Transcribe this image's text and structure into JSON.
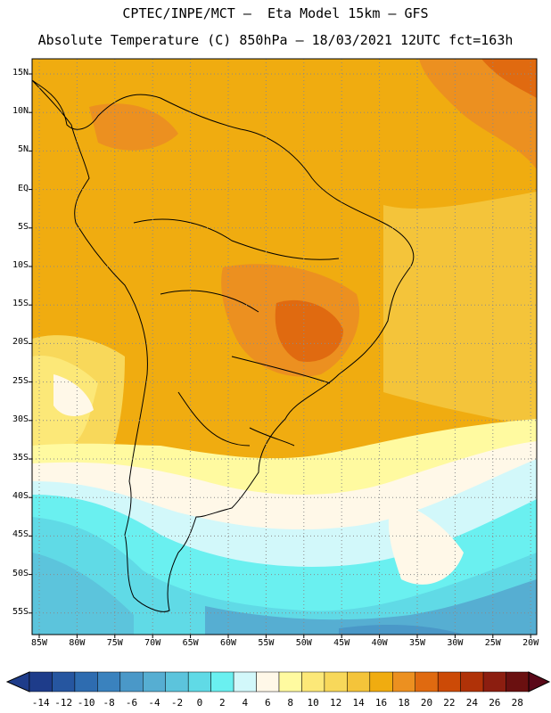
{
  "header": {
    "line1": "CPTEC/INPE/MCT –  Eta Model 15km – GFS",
    "line2": "Absolute Temperature (C) 850hPa – 18/03/2021 12UTC fct=163h"
  },
  "map": {
    "lat_labels": [
      "15N",
      "10N",
      "5N",
      "EQ",
      "5S",
      "10S",
      "15S",
      "20S",
      "25S",
      "30S",
      "35S",
      "40S",
      "45S",
      "50S",
      "55S"
    ],
    "lon_labels": [
      "85W",
      "80W",
      "75W",
      "70W",
      "65W",
      "60W",
      "55W",
      "50W",
      "45W",
      "40W",
      "35W",
      "30W",
      "25W",
      "20W"
    ],
    "grid": "dotted"
  },
  "colorbar": {
    "labels": [
      "-14",
      "-12",
      "-10",
      "-8",
      "-6",
      "-4",
      "-2",
      "0",
      "2",
      "4",
      "6",
      "8",
      "10",
      "12",
      "14",
      "16",
      "18",
      "20",
      "22",
      "24",
      "26",
      "28"
    ],
    "colors": [
      "#1e3c8a",
      "#2656a0",
      "#2e6cb0",
      "#3a82be",
      "#4a98c8",
      "#56aed2",
      "#5cc4dc",
      "#60dae6",
      "#6af0f0",
      "#d2f8fa",
      "#fff8e8",
      "#fffaa0",
      "#fce878",
      "#f8d85a",
      "#f4c43a",
      "#f0ac10",
      "#ec9020",
      "#e06a10",
      "#cc4a06",
      "#b03208",
      "#8c1e10",
      "#6a1010"
    ]
  }
}
